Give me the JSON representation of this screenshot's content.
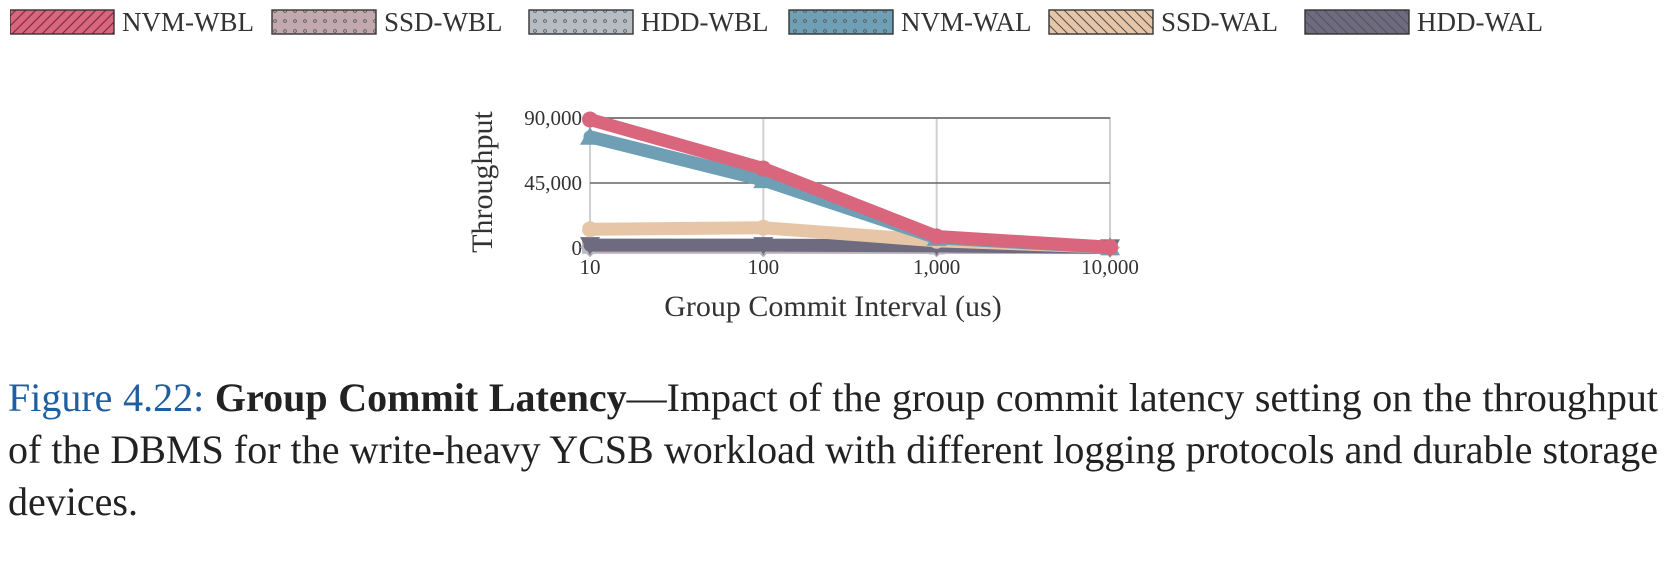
{
  "legend": [
    {
      "name": "NVM-WBL",
      "color": "#d9667d",
      "pattern": "hatch-diag"
    },
    {
      "name": "SSD-WBL",
      "color": "#c2a9b0",
      "pattern": "dots"
    },
    {
      "name": "HDD-WBL",
      "color": "#b6bcc4",
      "pattern": "dots"
    },
    {
      "name": "NVM-WAL",
      "color": "#6e9fb5",
      "pattern": "dots"
    },
    {
      "name": "SSD-WAL",
      "color": "#e7c6a7",
      "pattern": "hatch-anti"
    },
    {
      "name": "HDD-WAL",
      "color": "#6e6a80",
      "pattern": "hatch-anti"
    }
  ],
  "chart_data": {
    "type": "line",
    "xscale": "log",
    "x": [
      10,
      100,
      1000,
      10000
    ],
    "x_tick_labels": [
      "10",
      "100",
      "1,000",
      "10,000"
    ],
    "y_ticks": [
      0,
      45000,
      90000
    ],
    "y_tick_labels": [
      "0",
      "45,000",
      "90,000"
    ],
    "ylim": [
      0,
      90000
    ],
    "xlabel": "Group Commit Interval (us)",
    "ylabel": "Throughput",
    "series": [
      {
        "name": "SSD-WBL",
        "color": "#c2a9b0",
        "marker": "diamond",
        "values": [
          500,
          500,
          400,
          300
        ]
      },
      {
        "name": "HDD-WBL",
        "color": "#b6bcc4",
        "marker": "square",
        "values": [
          1500,
          1500,
          1000,
          400
        ]
      },
      {
        "name": "HDD-WAL",
        "color": "#6e6a80",
        "marker": "triangle-down",
        "values": [
          2000,
          2000,
          1500,
          400
        ]
      },
      {
        "name": "SSD-WAL",
        "color": "#e7c6a7",
        "marker": "circle",
        "values": [
          13000,
          14000,
          5000,
          500
        ]
      },
      {
        "name": "NVM-WAL",
        "color": "#6e9fb5",
        "marker": "triangle",
        "values": [
          77000,
          47000,
          7000,
          500
        ]
      },
      {
        "name": "NVM-WBL",
        "color": "#d9667d",
        "marker": "circle",
        "values": [
          89000,
          55000,
          8000,
          500
        ]
      }
    ]
  },
  "caption": {
    "label": "Figure 4.22:",
    "title": "Group Commit Latency",
    "text": "—Impact of the group commit latency setting on the throughput of the DBMS for the write-heavy YCSB workload with different logging protocols and durable storage devices."
  }
}
